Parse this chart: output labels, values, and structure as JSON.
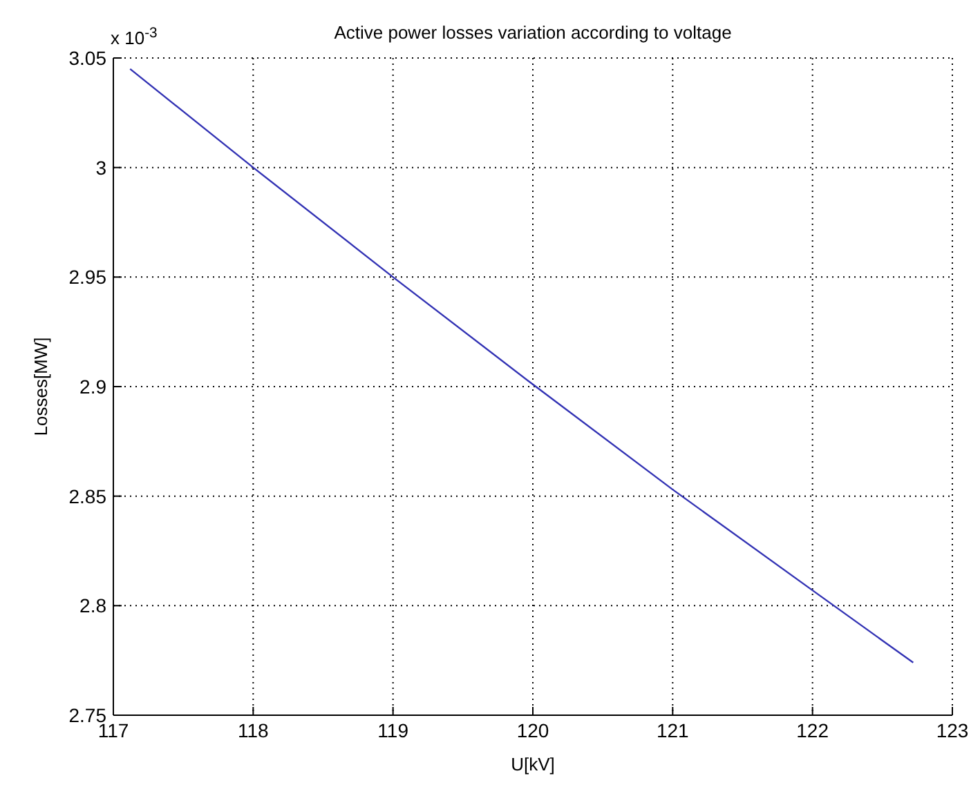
{
  "chart_data": {
    "type": "line",
    "title": "Active power losses variation according to voltage",
    "xlabel": "U[kV]",
    "ylabel": "Losses[MW]",
    "annotations": [
      "x 10$^{-3}$"
    ],
    "x": [
      117.12,
      118,
      119,
      120,
      121,
      122,
      122.72
    ],
    "series": [
      {
        "color": "#3232b4",
        "values": [
          3.045,
          3.0,
          2.95,
          2.901,
          2.853,
          2.807,
          2.774
        ]
      }
    ],
    "xlim": [
      117,
      123
    ],
    "xticks": [
      117,
      118,
      119,
      120,
      121,
      122,
      123
    ],
    "ylim": [
      2.75,
      3.05
    ],
    "yticks": [
      2.75,
      2.8,
      2.85,
      2.9,
      2.95,
      3,
      3.05
    ],
    "grid": true,
    "marker": "none",
    "line_style": "solid"
  }
}
